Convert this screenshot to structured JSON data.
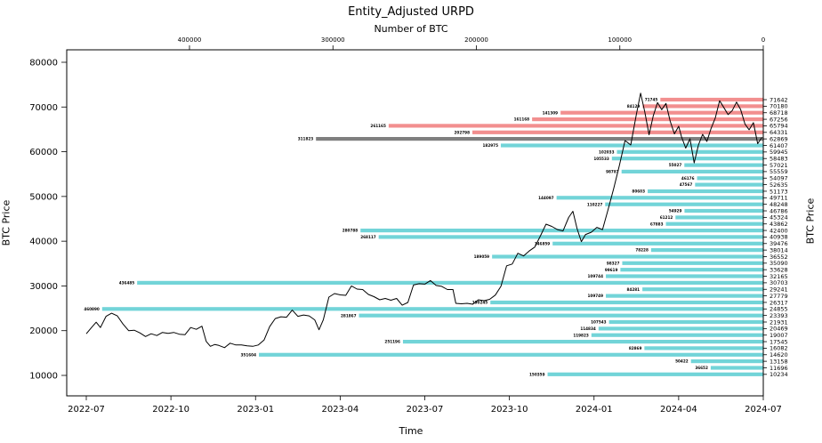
{
  "title": "Entity_Adjusted URPD",
  "top_axis_label": "Number of BTC",
  "left_axis_label": "BTC Price",
  "right_axis_label": "BTC Price",
  "bottom_axis_label": "Time",
  "colors": {
    "bar_below_price": "#72d4d8",
    "bar_above_price": "#f28f8f",
    "bar_current_price": "#7f7f7f",
    "price_line": "#000000",
    "axis": "#000000"
  },
  "chart_data": {
    "type": "bar",
    "orientation": "horizontal",
    "title": "Entity_Adjusted URPD",
    "top_axis": {
      "label": "Number of BTC",
      "ticks": [
        400000,
        300000,
        200000,
        100000,
        0
      ],
      "reversed": true,
      "max": 485000
    },
    "left_axis": {
      "label": "BTC Price",
      "ticks": [
        80000,
        70000,
        60000,
        50000,
        40000,
        30000,
        20000,
        10000
      ]
    },
    "bottom_axis": {
      "label": "Time",
      "ticks": [
        "2022-07",
        "2022-10",
        "2023-01",
        "2023-04",
        "2023-07",
        "2023-10",
        "2024-01",
        "2024-04",
        "2024-07"
      ]
    },
    "bars": [
      {
        "price": 71642,
        "btc": 71745,
        "zone": "above"
      },
      {
        "price": 70180,
        "btc": 84129,
        "zone": "above"
      },
      {
        "price": 68718,
        "btc": 141309,
        "zone": "above"
      },
      {
        "price": 67256,
        "btc": 161168,
        "zone": "above"
      },
      {
        "price": 65794,
        "btc": 261165,
        "zone": "above"
      },
      {
        "price": 64331,
        "btc": 202798,
        "zone": "above"
      },
      {
        "price": 62869,
        "btc": 311823,
        "zone": "current"
      },
      {
        "price": 61407,
        "btc": 182975,
        "zone": "below"
      },
      {
        "price": 59945,
        "btc": 102033,
        "zone": "below"
      },
      {
        "price": 58483,
        "btc": 105533,
        "zone": "below"
      },
      {
        "price": 57021,
        "btc": 55027,
        "zone": "below"
      },
      {
        "price": 55559,
        "btc": 98787,
        "zone": "below"
      },
      {
        "price": 54097,
        "btc": 46176,
        "zone": "below"
      },
      {
        "price": 52635,
        "btc": 47567,
        "zone": "below"
      },
      {
        "price": 51173,
        "btc": 80603,
        "zone": "below"
      },
      {
        "price": 49711,
        "btc": 144097,
        "zone": "below"
      },
      {
        "price": 48248,
        "btc": 110227,
        "zone": "below"
      },
      {
        "price": 46786,
        "btc": 54929,
        "zone": "below"
      },
      {
        "price": 45324,
        "btc": 61212,
        "zone": "below"
      },
      {
        "price": 43862,
        "btc": 67883,
        "zone": "below"
      },
      {
        "price": 42400,
        "btc": 280788,
        "zone": "below"
      },
      {
        "price": 40938,
        "btc": 268117,
        "zone": "below"
      },
      {
        "price": 39476,
        "btc": 146859,
        "zone": "below"
      },
      {
        "price": 38014,
        "btc": 78228,
        "zone": "below"
      },
      {
        "price": 36552,
        "btc": 189059,
        "zone": "below"
      },
      {
        "price": 35090,
        "btc": 98327,
        "zone": "below"
      },
      {
        "price": 33628,
        "btc": 99619,
        "zone": "below"
      },
      {
        "price": 32165,
        "btc": 109744,
        "zone": "below"
      },
      {
        "price": 30703,
        "btc": 436485,
        "zone": "below"
      },
      {
        "price": 29241,
        "btc": 84281,
        "zone": "below"
      },
      {
        "price": 27779,
        "btc": 109749,
        "zone": "below"
      },
      {
        "price": 26317,
        "btc": 190245,
        "zone": "below"
      },
      {
        "price": 24855,
        "btc": 460890,
        "zone": "below"
      },
      {
        "price": 23393,
        "btc": 281867,
        "zone": "below"
      },
      {
        "price": 21931,
        "btc": 107543,
        "zone": "below"
      },
      {
        "price": 20469,
        "btc": 114834,
        "zone": "below"
      },
      {
        "price": 19007,
        "btc": 119823,
        "zone": "below"
      },
      {
        "price": 17545,
        "btc": 251196,
        "zone": "below"
      },
      {
        "price": 16082,
        "btc": 82869,
        "zone": "below"
      },
      {
        "price": 14620,
        "btc": 351604,
        "zone": "below"
      },
      {
        "price": 13158,
        "btc": 50422,
        "zone": "below"
      },
      {
        "price": 11696,
        "btc": 36652,
        "zone": "below"
      },
      {
        "price": 10234,
        "btc": 150359,
        "zone": "below"
      }
    ],
    "price_line": {
      "name": "BTC Price",
      "x_unit": "months_since_2022_07",
      "points": [
        [
          0,
          19300
        ],
        [
          0.2,
          20800
        ],
        [
          0.35,
          21900
        ],
        [
          0.5,
          20700
        ],
        [
          0.7,
          23200
        ],
        [
          0.9,
          23900
        ],
        [
          1.1,
          23300
        ],
        [
          1.3,
          21500
        ],
        [
          1.5,
          20000
        ],
        [
          1.7,
          20100
        ],
        [
          1.9,
          19500
        ],
        [
          2.1,
          18700
        ],
        [
          2.3,
          19300
        ],
        [
          2.5,
          18900
        ],
        [
          2.7,
          19600
        ],
        [
          2.9,
          19400
        ],
        [
          3.1,
          19600
        ],
        [
          3.3,
          19200
        ],
        [
          3.5,
          19100
        ],
        [
          3.7,
          20700
        ],
        [
          3.9,
          20300
        ],
        [
          4.1,
          21000
        ],
        [
          4.25,
          17600
        ],
        [
          4.4,
          16500
        ],
        [
          4.55,
          16900
        ],
        [
          4.7,
          16700
        ],
        [
          4.9,
          16200
        ],
        [
          5.1,
          17200
        ],
        [
          5.3,
          16800
        ],
        [
          5.5,
          16800
        ],
        [
          5.7,
          16600
        ],
        [
          5.9,
          16500
        ],
        [
          6.1,
          16800
        ],
        [
          6.3,
          17900
        ],
        [
          6.5,
          20900
        ],
        [
          6.7,
          22700
        ],
        [
          6.9,
          23100
        ],
        [
          7.1,
          23000
        ],
        [
          7.3,
          24600
        ],
        [
          7.5,
          23200
        ],
        [
          7.7,
          23500
        ],
        [
          7.9,
          23300
        ],
        [
          8.1,
          22400
        ],
        [
          8.25,
          20200
        ],
        [
          8.4,
          22400
        ],
        [
          8.6,
          27500
        ],
        [
          8.8,
          28300
        ],
        [
          9.0,
          28000
        ],
        [
          9.2,
          27900
        ],
        [
          9.4,
          30000
        ],
        [
          9.6,
          29300
        ],
        [
          9.8,
          29200
        ],
        [
          10.0,
          28100
        ],
        [
          10.2,
          27600
        ],
        [
          10.4,
          26900
        ],
        [
          10.6,
          27200
        ],
        [
          10.8,
          26800
        ],
        [
          11.0,
          27200
        ],
        [
          11.2,
          25700
        ],
        [
          11.4,
          26300
        ],
        [
          11.6,
          30200
        ],
        [
          11.8,
          30500
        ],
        [
          12.0,
          30400
        ],
        [
          12.2,
          31200
        ],
        [
          12.4,
          30100
        ],
        [
          12.6,
          29900
        ],
        [
          12.8,
          29200
        ],
        [
          13.0,
          29200
        ],
        [
          13.1,
          26100
        ],
        [
          13.3,
          26000
        ],
        [
          13.5,
          26100
        ],
        [
          13.7,
          25900
        ],
        [
          13.9,
          26900
        ],
        [
          14.1,
          26700
        ],
        [
          14.3,
          27000
        ],
        [
          14.5,
          27950
        ],
        [
          14.7,
          29900
        ],
        [
          14.9,
          34500
        ],
        [
          15.1,
          34900
        ],
        [
          15.3,
          37300
        ],
        [
          15.5,
          36700
        ],
        [
          15.7,
          37800
        ],
        [
          15.9,
          38700
        ],
        [
          16.1,
          41200
        ],
        [
          16.3,
          43800
        ],
        [
          16.5,
          43300
        ],
        [
          16.7,
          42600
        ],
        [
          16.9,
          42300
        ],
        [
          17.1,
          45300
        ],
        [
          17.25,
          46700
        ],
        [
          17.4,
          42800
        ],
        [
          17.55,
          39900
        ],
        [
          17.7,
          41500
        ],
        [
          17.9,
          42000
        ],
        [
          18.1,
          43100
        ],
        [
          18.3,
          42600
        ],
        [
          18.5,
          47100
        ],
        [
          18.7,
          51800
        ],
        [
          18.9,
          57000
        ],
        [
          19.1,
          62500
        ],
        [
          19.3,
          61500
        ],
        [
          19.5,
          68300
        ],
        [
          19.65,
          73100
        ],
        [
          19.8,
          68900
        ],
        [
          19.95,
          63800
        ],
        [
          20.1,
          68000
        ],
        [
          20.25,
          71000
        ],
        [
          20.4,
          69400
        ],
        [
          20.55,
          70800
        ],
        [
          20.7,
          66800
        ],
        [
          20.85,
          64000
        ],
        [
          21.0,
          65700
        ],
        [
          21.1,
          63400
        ],
        [
          21.25,
          60800
        ],
        [
          21.4,
          62900
        ],
        [
          21.55,
          57500
        ],
        [
          21.7,
          61500
        ],
        [
          21.85,
          63900
        ],
        [
          22.0,
          62300
        ],
        [
          22.15,
          65200
        ],
        [
          22.3,
          67600
        ],
        [
          22.45,
          71400
        ],
        [
          22.6,
          69900
        ],
        [
          22.75,
          68300
        ],
        [
          22.9,
          69200
        ],
        [
          23.05,
          71100
        ],
        [
          23.2,
          69400
        ],
        [
          23.35,
          66200
        ],
        [
          23.5,
          64900
        ],
        [
          23.65,
          66500
        ],
        [
          23.8,
          61800
        ],
        [
          23.95,
          63200
        ]
      ]
    }
  }
}
